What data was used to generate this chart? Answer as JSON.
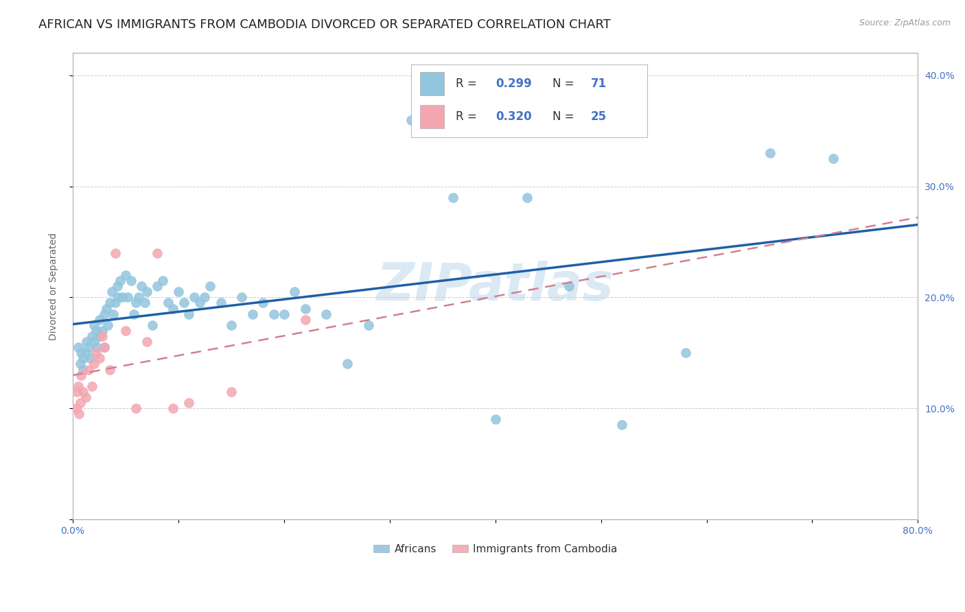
{
  "title": "AFRICAN VS IMMIGRANTS FROM CAMBODIA DIVORCED OR SEPARATED CORRELATION CHART",
  "source": "Source: ZipAtlas.com",
  "ylabel": "Divorced or Separated",
  "watermark": "ZIPatlas",
  "xlim": [
    0.0,
    0.8
  ],
  "ylim": [
    0.0,
    0.42
  ],
  "xticks": [
    0.0,
    0.1,
    0.2,
    0.3,
    0.4,
    0.5,
    0.6,
    0.7,
    0.8
  ],
  "xticklabels": [
    "0.0%",
    "",
    "",
    "",
    "",
    "",
    "",
    "",
    "80.0%"
  ],
  "yticks": [
    0.0,
    0.1,
    0.2,
    0.3,
    0.4
  ],
  "yticklabels": [
    "",
    "10.0%",
    "20.0%",
    "30.0%",
    "40.0%"
  ],
  "legend_R1": "0.299",
  "legend_N1": "71",
  "legend_R2": "0.320",
  "legend_N2": "25",
  "color_african": "#92c5de",
  "color_cambodia": "#f4a6b0",
  "color_line_african": "#1f5fa6",
  "color_line_cambodia": "#d08090",
  "africans_x": [
    0.005,
    0.007,
    0.008,
    0.01,
    0.01,
    0.012,
    0.013,
    0.015,
    0.016,
    0.018,
    0.02,
    0.02,
    0.022,
    0.023,
    0.025,
    0.025,
    0.028,
    0.03,
    0.03,
    0.032,
    0.033,
    0.035,
    0.037,
    0.038,
    0.04,
    0.042,
    0.043,
    0.045,
    0.047,
    0.05,
    0.052,
    0.055,
    0.058,
    0.06,
    0.062,
    0.065,
    0.068,
    0.07,
    0.075,
    0.08,
    0.085,
    0.09,
    0.095,
    0.1,
    0.105,
    0.11,
    0.115,
    0.12,
    0.125,
    0.13,
    0.14,
    0.15,
    0.16,
    0.17,
    0.18,
    0.19,
    0.2,
    0.21,
    0.22,
    0.24,
    0.26,
    0.28,
    0.32,
    0.36,
    0.4,
    0.43,
    0.47,
    0.52,
    0.58,
    0.66,
    0.72
  ],
  "africans_y": [
    0.155,
    0.14,
    0.15,
    0.145,
    0.135,
    0.15,
    0.16,
    0.155,
    0.145,
    0.165,
    0.16,
    0.175,
    0.17,
    0.155,
    0.165,
    0.18,
    0.17,
    0.155,
    0.185,
    0.19,
    0.175,
    0.195,
    0.205,
    0.185,
    0.195,
    0.21,
    0.2,
    0.215,
    0.2,
    0.22,
    0.2,
    0.215,
    0.185,
    0.195,
    0.2,
    0.21,
    0.195,
    0.205,
    0.175,
    0.21,
    0.215,
    0.195,
    0.19,
    0.205,
    0.195,
    0.185,
    0.2,
    0.195,
    0.2,
    0.21,
    0.195,
    0.175,
    0.2,
    0.185,
    0.195,
    0.185,
    0.185,
    0.205,
    0.19,
    0.185,
    0.14,
    0.175,
    0.36,
    0.29,
    0.09,
    0.29,
    0.21,
    0.085,
    0.15,
    0.33,
    0.325
  ],
  "cambodia_x": [
    0.003,
    0.004,
    0.005,
    0.006,
    0.007,
    0.008,
    0.01,
    0.012,
    0.015,
    0.018,
    0.02,
    0.022,
    0.025,
    0.028,
    0.03,
    0.035,
    0.04,
    0.05,
    0.06,
    0.07,
    0.08,
    0.095,
    0.11,
    0.15,
    0.22
  ],
  "cambodia_y": [
    0.1,
    0.115,
    0.12,
    0.095,
    0.105,
    0.13,
    0.115,
    0.11,
    0.135,
    0.12,
    0.14,
    0.15,
    0.145,
    0.165,
    0.155,
    0.135,
    0.24,
    0.17,
    0.1,
    0.16,
    0.24,
    0.1,
    0.105,
    0.115,
    0.18
  ],
  "background_color": "#ffffff",
  "grid_color": "#cccccc",
  "tick_color": "#4472c4",
  "title_color": "#222222",
  "title_fontsize": 13,
  "axis_label_fontsize": 10,
  "tick_fontsize": 10
}
